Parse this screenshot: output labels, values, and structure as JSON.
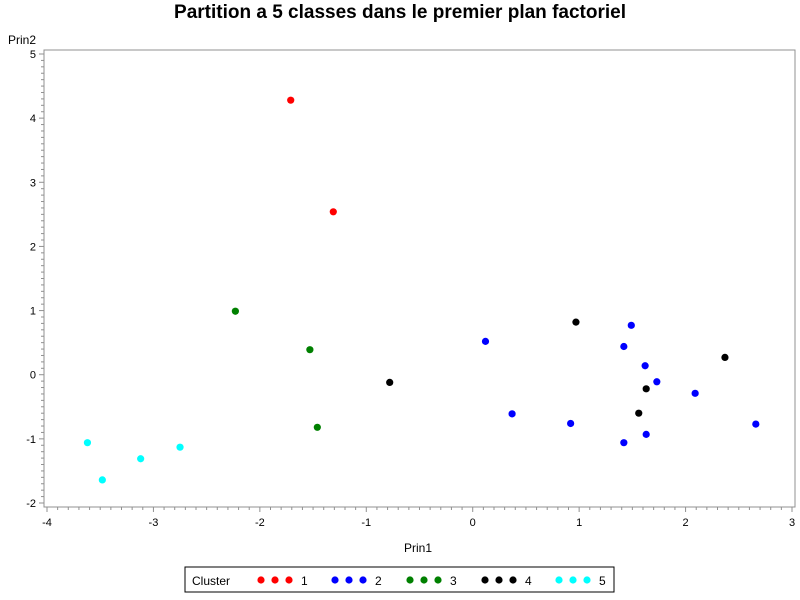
{
  "chart_data": {
    "type": "scatter",
    "title": "Partition a 5 classes dans le premier plan factoriel",
    "xlabel": "Prin1",
    "ylabel": "Prin2",
    "xlim": [
      -4,
      3
    ],
    "ylim": [
      -2,
      5
    ],
    "x_ticks": [
      "-4",
      "-3",
      "-2",
      "-1",
      "0",
      "1",
      "2",
      "3"
    ],
    "y_ticks": [
      "-2",
      "-1",
      "0",
      "1",
      "2",
      "3",
      "4",
      "5"
    ],
    "grid": false,
    "legend": {
      "position": "bottom",
      "title": "Cluster",
      "entries": [
        "1",
        "2",
        "3",
        "4",
        "5"
      ]
    },
    "series": [
      {
        "name": "1",
        "color": "#ff0000",
        "points": [
          [
            -1.71,
            4.28
          ],
          [
            -1.31,
            2.54
          ]
        ]
      },
      {
        "name": "2",
        "color": "#0000ff",
        "points": [
          [
            0.12,
            0.52
          ],
          [
            0.37,
            -0.61
          ],
          [
            0.92,
            -0.76
          ],
          [
            1.42,
            0.44
          ],
          [
            1.49,
            0.77
          ],
          [
            1.62,
            0.14
          ],
          [
            1.73,
            -0.11
          ],
          [
            1.42,
            -1.06
          ],
          [
            1.63,
            -0.93
          ],
          [
            2.09,
            -0.29
          ],
          [
            2.66,
            -0.77
          ]
        ]
      },
      {
        "name": "3",
        "color": "#008000",
        "points": [
          [
            -2.23,
            0.99
          ],
          [
            -1.53,
            0.39
          ],
          [
            -1.46,
            -0.82
          ]
        ]
      },
      {
        "name": "4",
        "color": "#000000",
        "points": [
          [
            -0.78,
            -0.12
          ],
          [
            0.97,
            0.82
          ],
          [
            1.56,
            -0.6
          ],
          [
            1.63,
            -0.22
          ],
          [
            2.37,
            0.27
          ]
        ]
      },
      {
        "name": "5",
        "color": "#00ffff",
        "points": [
          [
            -3.62,
            -1.06
          ],
          [
            -3.48,
            -1.64
          ],
          [
            -3.12,
            -1.31
          ],
          [
            -2.75,
            -1.13
          ]
        ]
      }
    ]
  }
}
